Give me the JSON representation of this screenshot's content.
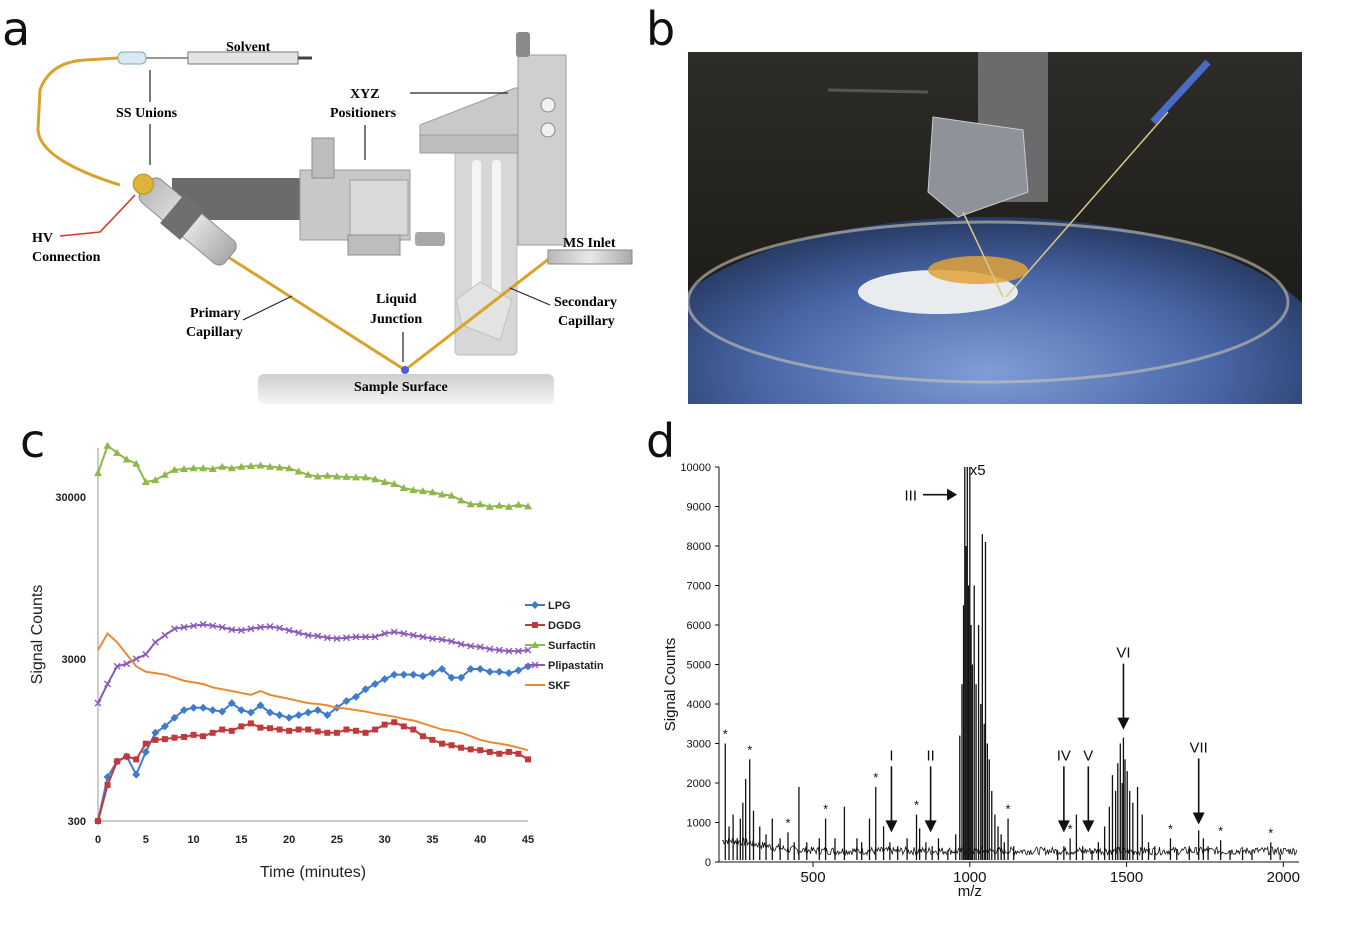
{
  "panels": {
    "a": {
      "letter": "a",
      "labels": {
        "solvent": "Solvent",
        "ss_unions": "SS Unions",
        "xyz_1": "XYZ",
        "xyz_2": "Positioners",
        "hv_1": "HV",
        "hv_2": "Connection",
        "ms_inlet": "MS Inlet",
        "liquid_1": "Liquid",
        "liquid_2": "Junction",
        "primary_1": "Primary",
        "primary_2": "Capillary",
        "secondary_1": "Secondary",
        "secondary_2": "Capillary",
        "sample_surface": "Sample Surface"
      }
    },
    "b": {
      "letter": "b"
    },
    "c": {
      "letter": "c"
    },
    "d": {
      "letter": "d"
    }
  },
  "chart_data": [
    {
      "panel": "c",
      "type": "line",
      "xlabel": "Time (minutes)",
      "ylabel": "Signal Counts",
      "yscale": "log",
      "xlim": [
        0,
        45
      ],
      "ylim": [
        300,
        60000
      ],
      "x_ticks": [
        0,
        5,
        10,
        15,
        20,
        25,
        30,
        35,
        40,
        45
      ],
      "y_ticks": [
        300,
        3000,
        30000
      ],
      "legend_position": "right",
      "x": [
        0,
        1,
        2,
        3,
        4,
        5,
        6,
        7,
        8,
        9,
        10,
        11,
        12,
        13,
        14,
        15,
        16,
        17,
        18,
        19,
        20,
        21,
        22,
        23,
        24,
        25,
        26,
        27,
        28,
        29,
        30,
        31,
        32,
        33,
        34,
        35,
        36,
        37,
        38,
        39,
        40,
        41,
        42,
        43,
        44,
        45
      ],
      "series": [
        {
          "name": "LPG",
          "color": "#3d7cc9",
          "marker": "diamond",
          "values": [
            300,
            560,
            700,
            750,
            580,
            800,
            1050,
            1150,
            1300,
            1450,
            1500,
            1500,
            1450,
            1420,
            1600,
            1450,
            1400,
            1550,
            1400,
            1350,
            1300,
            1350,
            1400,
            1450,
            1350,
            1500,
            1650,
            1750,
            1950,
            2100,
            2250,
            2400,
            2400,
            2400,
            2350,
            2450,
            2600,
            2300,
            2300,
            2600,
            2600,
            2500,
            2500,
            2450,
            2550,
            2700
          ]
        },
        {
          "name": "DGDG",
          "color": "#c0393b",
          "marker": "square",
          "values": [
            300,
            500,
            700,
            750,
            720,
            900,
            950,
            960,
            980,
            990,
            1020,
            1000,
            1050,
            1100,
            1080,
            1150,
            1200,
            1130,
            1120,
            1100,
            1080,
            1100,
            1100,
            1070,
            1050,
            1050,
            1100,
            1080,
            1050,
            1100,
            1180,
            1220,
            1150,
            1100,
            1000,
            950,
            900,
            880,
            850,
            830,
            820,
            800,
            780,
            800,
            780,
            720
          ]
        },
        {
          "name": "Surfactin",
          "color": "#8db84a",
          "marker": "triangle",
          "values": [
            42000,
            62000,
            56000,
            51000,
            48000,
            37000,
            38000,
            41000,
            44000,
            44500,
            45000,
            45000,
            44500,
            46000,
            45000,
            46000,
            46500,
            46800,
            46000,
            45500,
            45000,
            43000,
            41000,
            40000,
            40500,
            40000,
            39800,
            39500,
            39500,
            38500,
            37000,
            36000,
            34000,
            33000,
            32500,
            32000,
            31000,
            30500,
            28500,
            27000,
            27000,
            26000,
            26500,
            26000,
            26800,
            26200
          ]
        },
        {
          "name": "Plipastatin",
          "color": "#8a5ab8",
          "marker": "x",
          "values": [
            1600,
            2100,
            2700,
            2800,
            3000,
            3200,
            3800,
            4200,
            4600,
            4700,
            4800,
            4900,
            4800,
            4700,
            4550,
            4500,
            4600,
            4700,
            4750,
            4650,
            4500,
            4350,
            4200,
            4150,
            4050,
            4000,
            4050,
            4100,
            4100,
            4100,
            4300,
            4400,
            4300,
            4200,
            4100,
            4000,
            3950,
            3850,
            3700,
            3600,
            3550,
            3450,
            3400,
            3350,
            3350,
            3400
          ]
        },
        {
          "name": "SKF",
          "color": "#e98a33",
          "marker": "none",
          "values": [
            3400,
            4300,
            3800,
            3200,
            2700,
            2500,
            2450,
            2400,
            2300,
            2200,
            2150,
            2100,
            2000,
            1950,
            1900,
            1850,
            1800,
            1900,
            1800,
            1750,
            1700,
            1650,
            1600,
            1580,
            1550,
            1500,
            1480,
            1450,
            1420,
            1380,
            1350,
            1320,
            1280,
            1250,
            1200,
            1150,
            1100,
            1080,
            1050,
            1000,
            950,
            920,
            900,
            880,
            850,
            820
          ]
        }
      ]
    },
    {
      "panel": "d",
      "type": "line",
      "xlabel": "m/z",
      "ylabel": "Signal Counts",
      "xlim": [
        200,
        2050
      ],
      "ylim": [
        0,
        10000
      ],
      "x_ticks": [
        500,
        1000,
        1500,
        2000
      ],
      "y_ticks": [
        0,
        1000,
        2000,
        3000,
        4000,
        5000,
        6000,
        7000,
        8000,
        9000,
        10000
      ],
      "peaks": [
        [
          220,
          3000
        ],
        [
          232,
          900
        ],
        [
          245,
          1200
        ],
        [
          258,
          600
        ],
        [
          268,
          1100
        ],
        [
          276,
          1500
        ],
        [
          285,
          2100
        ],
        [
          298,
          2600
        ],
        [
          310,
          1300
        ],
        [
          330,
          900
        ],
        [
          350,
          700
        ],
        [
          370,
          1100
        ],
        [
          395,
          600
        ],
        [
          420,
          750
        ],
        [
          440,
          500
        ],
        [
          455,
          1900
        ],
        [
          480,
          500
        ],
        [
          520,
          600
        ],
        [
          540,
          1100
        ],
        [
          570,
          600
        ],
        [
          600,
          1400
        ],
        [
          640,
          600
        ],
        [
          655,
          500
        ],
        [
          680,
          1100
        ],
        [
          700,
          1900
        ],
        [
          725,
          900
        ],
        [
          745,
          500
        ],
        [
          770,
          400
        ],
        [
          800,
          600
        ],
        [
          830,
          1200
        ],
        [
          840,
          850
        ],
        [
          860,
          500
        ],
        [
          880,
          400
        ],
        [
          900,
          600
        ],
        [
          930,
          300
        ],
        [
          955,
          700
        ],
        [
          968,
          3200
        ],
        [
          975,
          4500
        ],
        [
          980,
          6500
        ],
        [
          984,
          10000
        ],
        [
          988,
          8000
        ],
        [
          992,
          10000
        ],
        [
          996,
          7000
        ],
        [
          1000,
          10000
        ],
        [
          1004,
          6000
        ],
        [
          1008,
          5000
        ],
        [
          1014,
          7000
        ],
        [
          1020,
          4500
        ],
        [
          1028,
          6000
        ],
        [
          1035,
          4000
        ],
        [
          1040,
          8300
        ],
        [
          1046,
          3500
        ],
        [
          1050,
          8100
        ],
        [
          1056,
          3000
        ],
        [
          1062,
          2600
        ],
        [
          1070,
          1800
        ],
        [
          1080,
          1200
        ],
        [
          1090,
          900
        ],
        [
          1100,
          700
        ],
        [
          1110,
          500
        ],
        [
          1122,
          1100
        ],
        [
          1140,
          400
        ],
        [
          1280,
          300
        ],
        [
          1300,
          400
        ],
        [
          1320,
          600
        ],
        [
          1340,
          1200
        ],
        [
          1360,
          400
        ],
        [
          1390,
          300
        ],
        [
          1410,
          500
        ],
        [
          1430,
          900
        ],
        [
          1445,
          1400
        ],
        [
          1455,
          2200
        ],
        [
          1465,
          1800
        ],
        [
          1472,
          2500
        ],
        [
          1480,
          3000
        ],
        [
          1486,
          2000
        ],
        [
          1490,
          3150
        ],
        [
          1495,
          2600
        ],
        [
          1502,
          2300
        ],
        [
          1510,
          1800
        ],
        [
          1520,
          1500
        ],
        [
          1535,
          1900
        ],
        [
          1550,
          1200
        ],
        [
          1570,
          500
        ],
        [
          1590,
          400
        ],
        [
          1640,
          600
        ],
        [
          1660,
          300
        ],
        [
          1700,
          400
        ],
        [
          1730,
          800
        ],
        [
          1745,
          600
        ],
        [
          1760,
          400
        ],
        [
          1800,
          550
        ],
        [
          1830,
          300
        ],
        [
          1870,
          300
        ],
        [
          1900,
          300
        ],
        [
          1960,
          500
        ],
        [
          1990,
          200
        ]
      ],
      "annotations": [
        {
          "label": "*",
          "x": 220,
          "y": 3000
        },
        {
          "label": "*",
          "x": 298,
          "y": 2600
        },
        {
          "label": "*",
          "x": 420,
          "y": 750
        },
        {
          "label": "*",
          "x": 540,
          "y": 1100
        },
        {
          "label": "*",
          "x": 700,
          "y": 1900
        },
        {
          "label": "*",
          "x": 830,
          "y": 1200
        },
        {
          "label": "*",
          "x": 1122,
          "y": 1100
        },
        {
          "label": "*",
          "x": 1320,
          "y": 600
        },
        {
          "label": "*",
          "x": 1640,
          "y": 600
        },
        {
          "label": "*",
          "x": 1800,
          "y": 550
        },
        {
          "label": "*",
          "x": 1960,
          "y": 500
        },
        {
          "label": "I",
          "x": 750,
          "y": 700,
          "arrow": true
        },
        {
          "label": "II",
          "x": 875,
          "y": 700,
          "arrow": true
        },
        {
          "label": "III",
          "x": 972,
          "y": 9300,
          "arrow": "right"
        },
        {
          "label": "IV",
          "x": 1300,
          "y": 700,
          "arrow": true
        },
        {
          "label": "V",
          "x": 1378,
          "y": 700,
          "arrow": true
        },
        {
          "label": "VI",
          "x": 1490,
          "y": 3300,
          "arrow": true
        },
        {
          "label": "VII",
          "x": 1730,
          "y": 900,
          "arrow": true
        },
        {
          "label": "x5",
          "x": 1025,
          "y": 10000
        }
      ]
    }
  ]
}
